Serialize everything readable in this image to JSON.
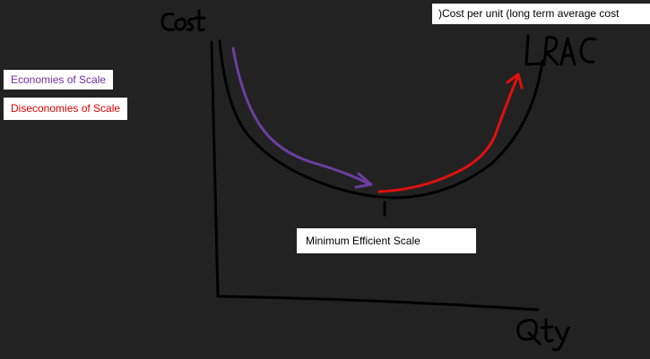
{
  "labels": {
    "economies_of_scale": "Economies of Scale",
    "diseconomies_of_scale": "Diseconomies of Scale",
    "minimum_efficient_scale": "Minimum Efficient Scale",
    "cost_per_unit": ")Cost per unit (long term average cost"
  },
  "handwritten": {
    "y_axis": "Cost",
    "x_axis": "Qty",
    "curve": "LRAC"
  },
  "colors": {
    "background": "#222222",
    "economies_arrow": "#6a3fa0",
    "diseconomies_arrow": "#e01010",
    "axes": "#000000"
  }
}
